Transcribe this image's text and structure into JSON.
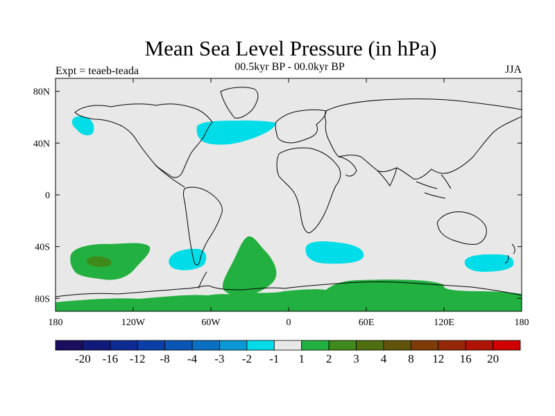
{
  "title": "Mean Sea Level Pressure (in hPa)",
  "subtitle": "00.5kyr BP - 00.0kyr BP",
  "experiment": "Expt = teaeb-teada",
  "season": "JJA",
  "chart_data": {
    "type": "contour-map",
    "variable": "Mean Sea Level Pressure difference (hPa)",
    "lon_range": [
      -180,
      180
    ],
    "lat_range": [
      -90,
      90
    ],
    "x_ticks": [
      {
        "lon": -180,
        "label": "180"
      },
      {
        "lon": -120,
        "label": "120W"
      },
      {
        "lon": -60,
        "label": "60W"
      },
      {
        "lon": 0,
        "label": "0"
      },
      {
        "lon": 60,
        "label": "60E"
      },
      {
        "lon": 120,
        "label": "120E"
      },
      {
        "lon": 180,
        "label": "180"
      }
    ],
    "y_ticks": [
      {
        "lat": 80,
        "label": "80N"
      },
      {
        "lat": 40,
        "label": "40N"
      },
      {
        "lat": 0,
        "label": "0"
      },
      {
        "lat": -40,
        "label": "40S"
      },
      {
        "lat": -80,
        "label": "80S"
      }
    ],
    "colorbar": {
      "colors": [
        "#1a0f5e",
        "#101a7a",
        "#0e2b94",
        "#0b3fa8",
        "#0a55b6",
        "#0a6fc0",
        "#0b98d4",
        "#00dde8",
        "#e8e8e8",
        "#22b040",
        "#3f8a1a",
        "#4e6e10",
        "#62530a",
        "#7d3c08",
        "#962807",
        "#b01405",
        "#d00000"
      ],
      "labels": [
        "-20",
        "-16",
        "-12",
        "-8",
        "-4",
        "-3",
        "-2",
        "-1",
        "1",
        "2",
        "3",
        "4",
        "8",
        "12",
        "16",
        "20"
      ]
    },
    "background_color": "#e8e8e8",
    "regions": [
      {
        "name": "north-pacific-low",
        "level": "-2 to -1",
        "color": "#00dde8",
        "lon": -160,
        "lat": 53
      },
      {
        "name": "north-atlantic-low",
        "level": "-2 to -1",
        "color": "#00dde8",
        "lon": -35,
        "lat": 47
      },
      {
        "name": "south-pacific-high",
        "level": "1 to 2",
        "color": "#22b040",
        "lon": -145,
        "lat": -50
      },
      {
        "name": "south-pacific-high-core",
        "level": "2 to 3",
        "color": "#3f8a1a",
        "lon": -143,
        "lat": -52
      },
      {
        "name": "south-america-low",
        "level": "-2 to -1",
        "color": "#00dde8",
        "lon": -70,
        "lat": -48
      },
      {
        "name": "south-atlantic-high",
        "level": "1 to 2",
        "color": "#22b040",
        "lon": -25,
        "lat": -55
      },
      {
        "name": "south-indian-low",
        "level": "-2 to -1",
        "color": "#00dde8",
        "lon": 37,
        "lat": -45
      },
      {
        "name": "south-of-australia-low",
        "level": "-2 to -1",
        "color": "#00dde8",
        "lon": 157,
        "lat": -53
      },
      {
        "name": "antarctic-high-band",
        "level": "1 to 2",
        "color": "#22b040",
        "lon": 0,
        "lat": -80
      }
    ]
  }
}
